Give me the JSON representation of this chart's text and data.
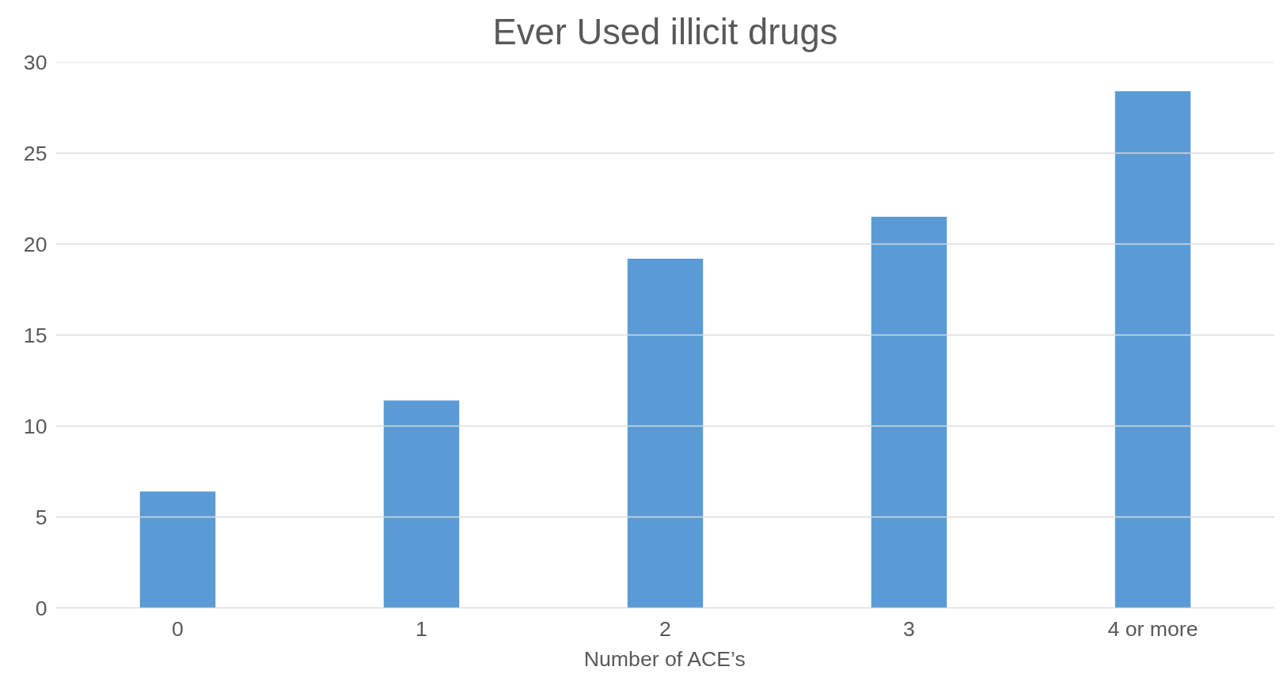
{
  "chart_data": {
    "type": "bar",
    "title": "Ever Used illicit drugs",
    "xlabel": "Number of ACE’s",
    "categories": [
      "0",
      "1",
      "2",
      "3",
      "4 or more"
    ],
    "values": [
      6.4,
      11.4,
      19.2,
      21.5,
      28.4
    ],
    "color": "#5b9bd5",
    "ylim": [
      0,
      30
    ],
    "yticks": [
      0,
      5,
      10,
      15,
      20,
      25,
      30
    ],
    "grid": "y"
  }
}
